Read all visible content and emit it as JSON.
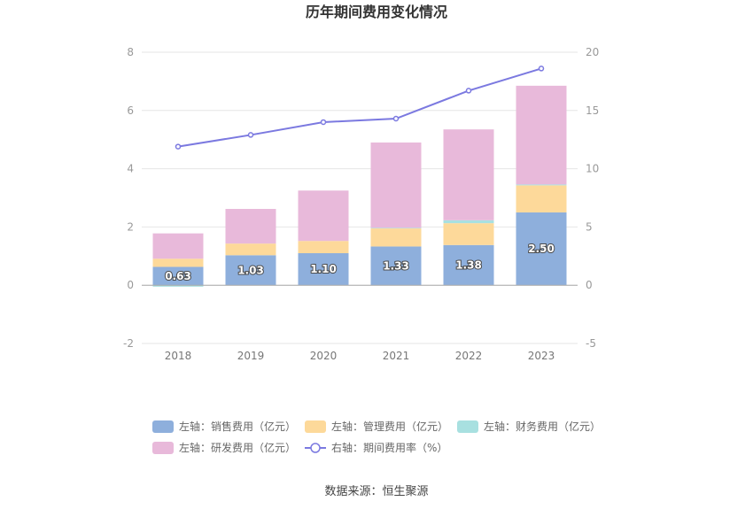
{
  "colors": {
    "sales": "#8eafdc",
    "admin": "#fdd99a",
    "finance": "#a8e0e0",
    "rd": "#e8b9da",
    "ratio": "#7b79e0",
    "grid": "#e6e6e6",
    "axis": "#cccccc"
  },
  "chart_data": {
    "type": "bar",
    "title": "历年期间费用变化情况",
    "categories": [
      "2018",
      "2019",
      "2020",
      "2021",
      "2022",
      "2023"
    ],
    "stacked": true,
    "left_axis": {
      "ylim": [
        -2,
        8
      ],
      "ticks": [
        "-2",
        "0",
        "2",
        "4",
        "6",
        "8"
      ]
    },
    "right_axis": {
      "ylim": [
        -5,
        20
      ],
      "ticks": [
        "-5",
        "0",
        "5",
        "10",
        "15",
        "20"
      ]
    },
    "grid": true,
    "legend_position": "bottom",
    "series": [
      {
        "name": "左轴：销售费用（亿元）",
        "type": "bar",
        "axis": "left",
        "values": [
          0.63,
          1.03,
          1.1,
          1.33,
          1.38,
          2.5
        ],
        "labels": [
          "0.63",
          "1.03",
          "1.10",
          "1.33",
          "1.38",
          "2.50"
        ]
      },
      {
        "name": "左轴：管理费用（亿元）",
        "type": "bar",
        "axis": "left",
        "values": [
          0.28,
          0.4,
          0.42,
          0.62,
          0.75,
          0.93
        ]
      },
      {
        "name": "左轴：财务费用（亿元）",
        "type": "bar",
        "axis": "left",
        "values": [
          -0.05,
          0.0,
          0.0,
          0.02,
          0.1,
          0.03
        ]
      },
      {
        "name": "左轴：研发费用（亿元）",
        "type": "bar",
        "axis": "left",
        "values": [
          0.87,
          1.19,
          1.73,
          2.93,
          3.12,
          3.39
        ]
      },
      {
        "name": "右轴：期间费用率（%）",
        "type": "line",
        "axis": "right",
        "values": [
          11.9,
          12.9,
          14.0,
          14.3,
          16.7,
          18.6
        ]
      }
    ]
  },
  "source": "数据来源：恒生聚源"
}
